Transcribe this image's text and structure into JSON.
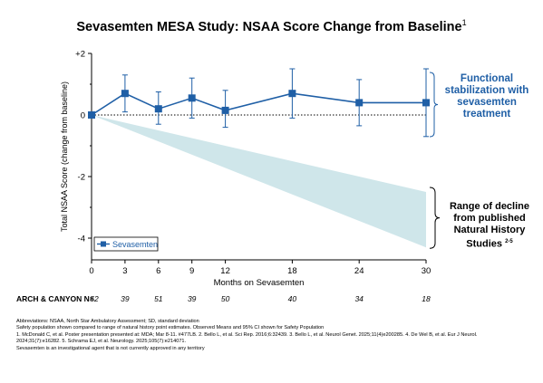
{
  "title": "Sevasemten MESA Study: NSAA Score Change from Baseline",
  "title_ref": "1",
  "chart_data": {
    "type": "line",
    "xlabel": "Months on Sevasemten",
    "ylabel": "Total NSAA Score (change from baseline)",
    "x_ticks": [
      0,
      3,
      6,
      9,
      12,
      18,
      24,
      30
    ],
    "y_ticks": [
      "+2",
      "0",
      "-2",
      "-4"
    ],
    "xlim": [
      0,
      30
    ],
    "ylim": [
      -4.3,
      2
    ],
    "reference_line": 0,
    "legend_position": "bottom-left",
    "series": [
      {
        "name": "Sevasemten",
        "color": "#1f5fa6",
        "x": [
          0,
          3,
          6,
          9,
          12,
          18,
          24,
          30
        ],
        "y": [
          0,
          0.7,
          0.2,
          0.55,
          0.15,
          0.7,
          0.4,
          0.4
        ],
        "ci_low": [
          0,
          0.1,
          -0.3,
          -0.1,
          -0.4,
          -0.1,
          -0.35,
          -0.7
        ],
        "ci_high": [
          0,
          1.3,
          0.75,
          1.2,
          0.8,
          1.5,
          1.15,
          1.5
        ]
      }
    ],
    "decline_range": {
      "color": "#cfe6ea",
      "x": [
        0,
        30
      ],
      "upper": [
        0,
        -2.5
      ],
      "lower": [
        0,
        -4.3
      ]
    }
  },
  "annotations": {
    "functional": [
      "Functional",
      "stabilization with",
      "sevasemten",
      "treatment"
    ],
    "decline": [
      "Range of decline",
      "from published",
      "Natural History",
      "Studies"
    ],
    "decline_ref": "2-5"
  },
  "n_row": {
    "label": "ARCH & CANYON  N=",
    "values": [
      "52",
      "39",
      "51",
      "39",
      "50",
      "40",
      "34",
      "18"
    ]
  },
  "footnotes": [
    "Abbreviations: NSAA, North Star Ambulatory Assessment; SD, standard deviation",
    "Safety population shown compared to range of natural history point estimates. Observed Means and 95% CI shown for Safety Population",
    "1. McDonald C, et al. Poster presentation presented at: MDA; Mar 8-11. #477LB. 2. Bello L, et al. Sci Rep. 2016;6:32439. 3. Bello L, et al. Neurol Genet. 2025;11(4)e200285. 4. De Wel B, et al. Eur J Neurol.",
    "2024;31(7):e16282. 5. Schrama EJ, et al. Neurology. 2025;105(7):e214071.",
    "Sevasemten is an investigational agent that is not currently approved in any territory"
  ]
}
